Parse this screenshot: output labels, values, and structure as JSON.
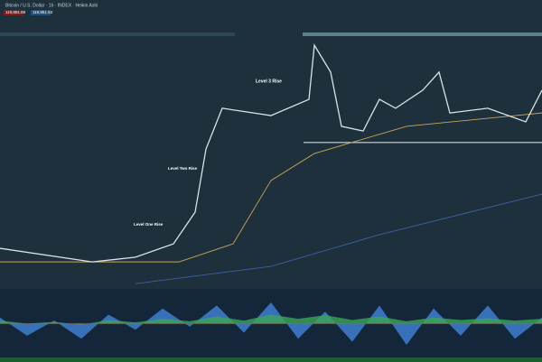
{
  "header": {
    "symbol": "Bitcoin / U.S. Dollar · 1h · INDEX · Heikin Ashi",
    "price_tags": [
      "119,881.69",
      "119,851.53"
    ]
  },
  "chart_data": [
    {
      "type": "line",
      "annotations": [
        "Level One Rise",
        "Level Two Rise",
        "Level 3 Rise"
      ],
      "xlim": [
        0,
        100
      ],
      "ylim": [
        0,
        100
      ],
      "level_line": {
        "value": 55.9,
        "x": [
          56,
          100
        ],
        "color": "#e6ecef"
      },
      "series": [
        {
          "color": "#d8e2e8",
          "x": [
            0,
            17,
            25,
            32,
            36,
            38,
            41,
            50,
            57,
            58,
            61,
            63,
            67,
            70,
            73,
            78,
            81,
            83,
            90,
            97,
            100
          ],
          "values": [
            15.5,
            10.3,
            12.1,
            17.2,
            29.3,
            53.4,
            69,
            66.2,
            72.4,
            93.1,
            82.8,
            62.1,
            60.3,
            72.4,
            69,
            75.9,
            82.8,
            67.2,
            69,
            63.8,
            75.9
          ]
        },
        {
          "color": "#c9a45a",
          "x": [
            0,
            33,
            43,
            50,
            58,
            75,
            100
          ],
          "values": [
            10.3,
            10.3,
            17.2,
            41.4,
            51.7,
            62.1,
            67.2
          ]
        },
        {
          "color": "#3d5fa8",
          "x": [
            25,
            50,
            70,
            100
          ],
          "values": [
            2,
            8.6,
            20.7,
            36.2
          ]
        }
      ]
    },
    {
      "type": "area",
      "xlim": [
        0,
        100
      ],
      "ylim": [
        -50,
        50
      ],
      "x": [
        0,
        5,
        10,
        15,
        20,
        25,
        30,
        35,
        40,
        45,
        50,
        55,
        60,
        65,
        70,
        75,
        80,
        85,
        90,
        95,
        100
      ],
      "series": [
        {
          "color": "#3f7fd0",
          "values": [
            10,
            -20,
            5,
            -25,
            15,
            -10,
            25,
            -5,
            30,
            -15,
            35,
            -25,
            20,
            -30,
            30,
            -35,
            25,
            -20,
            30,
            -25,
            10
          ]
        },
        {
          "color": "#3aa655",
          "values": [
            5,
            0,
            3,
            -2,
            6,
            2,
            8,
            4,
            12,
            5,
            15,
            8,
            14,
            6,
            12,
            4,
            10,
            6,
            9,
            5,
            8
          ]
        }
      ]
    }
  ]
}
